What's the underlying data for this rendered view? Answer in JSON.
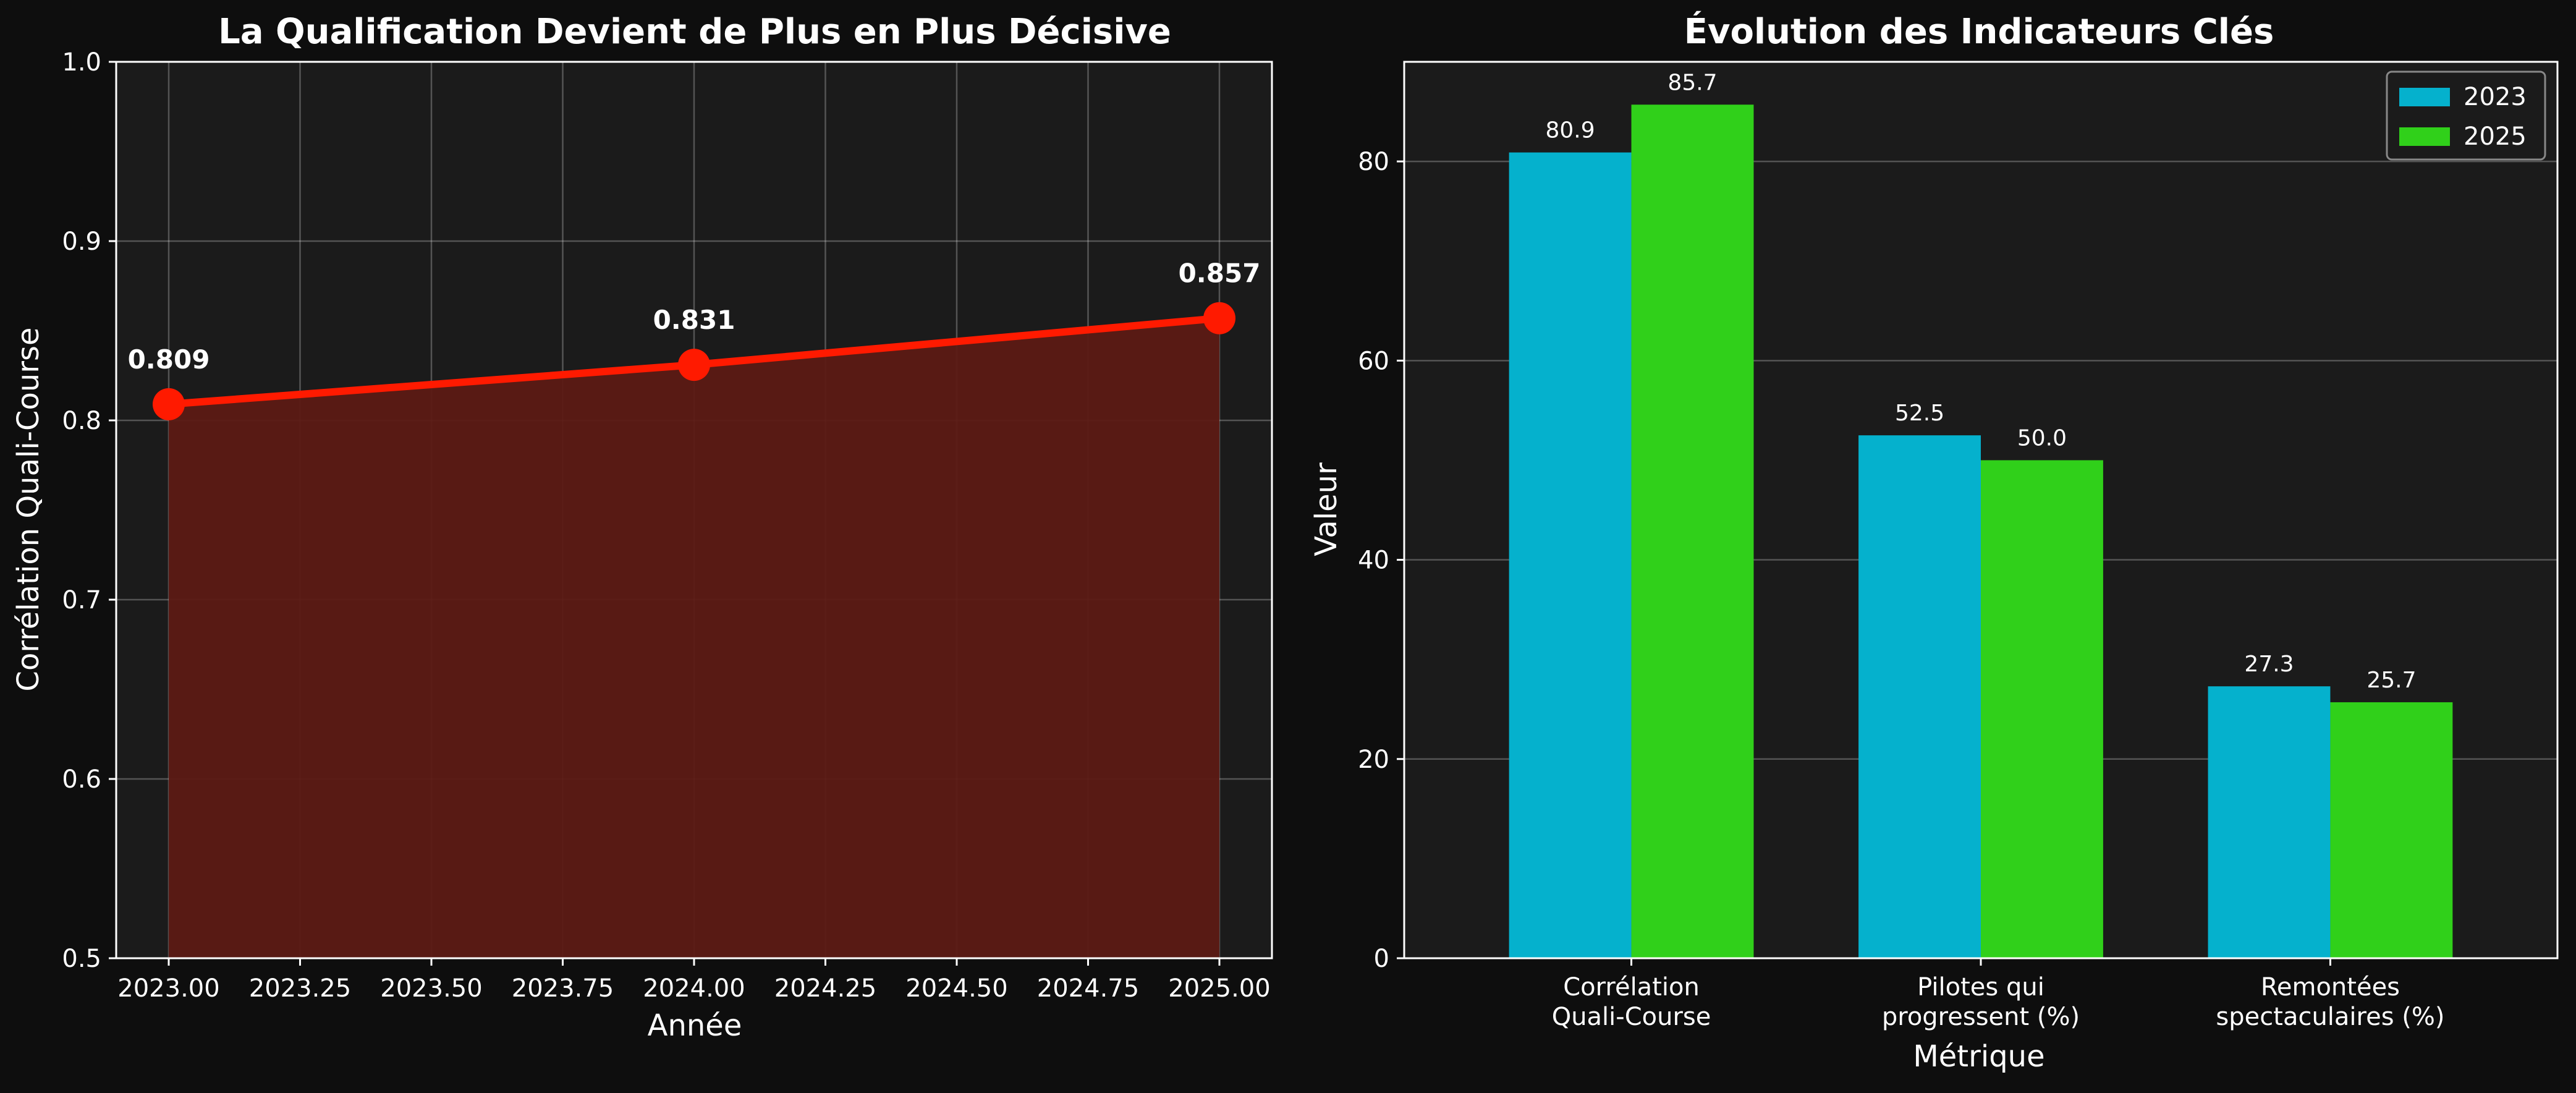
{
  "colors": {
    "figure_bg": "#0e0e0e",
    "axes_bg": "#1b1b1b",
    "line": "#ff1a00",
    "fill": "#5c1a14",
    "bar_2023": "#05b1cd",
    "bar_2025": "#30d01a",
    "text": "#ffffff"
  },
  "chart_data": [
    {
      "type": "line",
      "title": "La Qualification Devient de Plus en Plus Décisive",
      "xlabel": "Année",
      "ylabel": "Corrélation Quali-Course",
      "x": [
        2023,
        2024,
        2025
      ],
      "y": [
        0.809,
        0.831,
        0.857
      ],
      "point_labels": [
        "0.809",
        "0.831",
        "0.857"
      ],
      "xlim": [
        2022.9,
        2025.1
      ],
      "ylim": [
        0.5,
        1.0
      ],
      "xticks": [
        "2023.00",
        "2023.25",
        "2023.50",
        "2023.75",
        "2024.00",
        "2024.25",
        "2024.50",
        "2024.75",
        "2025.00"
      ],
      "yticks": [
        "0.5",
        "0.6",
        "0.7",
        "0.8",
        "0.9",
        "1.0"
      ],
      "area_fill": true,
      "grid": true
    },
    {
      "type": "bar",
      "title": "Évolution des Indicateurs Clés",
      "xlabel": "Métrique",
      "ylabel": "Valeur",
      "categories": [
        [
          "Corrélation",
          "Quali-Course"
        ],
        [
          "Pilotes qui",
          "progressent (%)"
        ],
        [
          "Remontées",
          "spectaculaires (%)"
        ]
      ],
      "series": [
        {
          "name": "2023",
          "values": [
            80.9,
            52.5,
            27.3
          ],
          "labels": [
            "80.9",
            "52.5",
            "27.3"
          ]
        },
        {
          "name": "2025",
          "values": [
            85.7,
            50.0,
            25.7
          ],
          "labels": [
            "85.7",
            "50.0",
            "25.7"
          ]
        }
      ],
      "ylim": [
        0,
        90
      ],
      "yticks": [
        "0",
        "20",
        "40",
        "60",
        "80"
      ],
      "legend": "top-right",
      "grid": true
    }
  ]
}
